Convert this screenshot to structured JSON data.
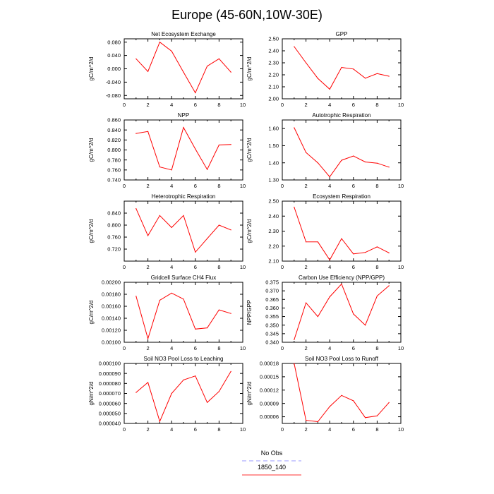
{
  "figure": {
    "title": "Europe (45-60N,10W-30E)",
    "legend": [
      {
        "label": "No Obs",
        "color": "#9999ff",
        "dash": true
      },
      {
        "label": "1850_140",
        "color": "#ff3333",
        "dash": false
      }
    ]
  },
  "chart_data": [
    {
      "type": "line",
      "title": "Net Ecosystem Exchange",
      "ylabel": "gC/m^2/d",
      "xlim": [
        0,
        10
      ],
      "xticks": [
        0,
        2,
        4,
        6,
        8,
        10
      ],
      "ylim": [
        -0.09,
        0.09
      ],
      "yticks": [
        -0.08,
        -0.04,
        0.0,
        0.04,
        0.08
      ],
      "ytick_labels": [
        "-0.080",
        "-0.040",
        "0.000",
        "0.040",
        "0.080"
      ],
      "series": [
        {
          "name": "1850_140",
          "color": "#ff0000",
          "x": [
            1,
            2,
            3,
            4,
            5,
            6,
            7,
            8,
            9
          ],
          "y": [
            0.03,
            -0.008,
            0.08,
            0.053,
            -0.01,
            -0.072,
            0.008,
            0.03,
            -0.01
          ]
        }
      ]
    },
    {
      "type": "line",
      "title": "GPP",
      "ylabel": "gC/m^2/d",
      "xlim": [
        0,
        10
      ],
      "xticks": [
        0,
        2,
        4,
        6,
        8,
        10
      ],
      "ylim": [
        2.0,
        2.5
      ],
      "yticks": [
        2.0,
        2.1,
        2.2,
        2.3,
        2.4,
        2.5
      ],
      "ytick_labels": [
        "2.00",
        "2.10",
        "2.20",
        "2.30",
        "2.40",
        "2.50"
      ],
      "series": [
        {
          "name": "1850_140",
          "color": "#ff0000",
          "x": [
            1,
            2,
            3,
            4,
            5,
            6,
            7,
            8,
            9
          ],
          "y": [
            2.435,
            2.3,
            2.17,
            2.08,
            2.262,
            2.248,
            2.172,
            2.21,
            2.188
          ]
        }
      ]
    },
    {
      "type": "line",
      "title": "NPP",
      "ylabel": "gC/m^2/d",
      "xlim": [
        0,
        10
      ],
      "xticks": [
        0,
        2,
        4,
        6,
        8,
        10
      ],
      "ylim": [
        0.74,
        0.86
      ],
      "yticks": [
        0.74,
        0.76,
        0.78,
        0.8,
        0.82,
        0.84,
        0.86
      ],
      "ytick_labels": [
        "0.740",
        "0.760",
        "0.780",
        "0.800",
        "0.820",
        "0.840",
        "0.860"
      ],
      "series": [
        {
          "name": "1850_140",
          "color": "#ff0000",
          "x": [
            1,
            2,
            3,
            4,
            5,
            6,
            7,
            8,
            9
          ],
          "y": [
            0.833,
            0.837,
            0.766,
            0.76,
            0.845,
            0.802,
            0.761,
            0.81,
            0.811
          ]
        }
      ]
    },
    {
      "type": "line",
      "title": "Autotrophic Respiration",
      "ylabel": "gC/m^2/d",
      "xlim": [
        0,
        10
      ],
      "xticks": [
        0,
        2,
        4,
        6,
        8,
        10
      ],
      "ylim": [
        1.3,
        1.65
      ],
      "yticks": [
        1.3,
        1.4,
        1.5,
        1.6
      ],
      "ytick_labels": [
        "1.30",
        "1.40",
        "1.50",
        "1.60"
      ],
      "series": [
        {
          "name": "1850_140",
          "color": "#ff0000",
          "x": [
            1,
            2,
            3,
            4,
            5,
            6,
            7,
            8,
            9
          ],
          "y": [
            1.605,
            1.46,
            1.4,
            1.318,
            1.415,
            1.44,
            1.405,
            1.398,
            1.375
          ]
        }
      ]
    },
    {
      "type": "line",
      "title": "Heterotrophic Respiration",
      "ylabel": "gC/m^2/d",
      "xlim": [
        0,
        10
      ],
      "xticks": [
        0,
        2,
        4,
        6,
        8,
        10
      ],
      "ylim": [
        0.68,
        0.88
      ],
      "yticks": [
        0.72,
        0.76,
        0.8,
        0.84
      ],
      "ytick_labels": [
        "0.720",
        "0.760",
        "0.800",
        "0.840"
      ],
      "series": [
        {
          "name": "1850_140",
          "color": "#ff0000",
          "x": [
            1,
            2,
            3,
            4,
            5,
            6,
            7,
            8,
            9
          ],
          "y": [
            0.855,
            0.765,
            0.832,
            0.792,
            0.832,
            0.71,
            0.755,
            0.8,
            0.784
          ]
        }
      ]
    },
    {
      "type": "line",
      "title": "Ecosystem Respiration",
      "ylabel": "gC/m^2/d",
      "xlim": [
        0,
        10
      ],
      "xticks": [
        0,
        2,
        4,
        6,
        8,
        10
      ],
      "ylim": [
        2.1,
        2.5
      ],
      "yticks": [
        2.1,
        2.2,
        2.3,
        2.4,
        2.5
      ],
      "ytick_labels": [
        "2.10",
        "2.20",
        "2.30",
        "2.40",
        "2.50"
      ],
      "series": [
        {
          "name": "1850_140",
          "color": "#ff0000",
          "x": [
            1,
            2,
            3,
            4,
            5,
            6,
            7,
            8,
            9
          ],
          "y": [
            2.46,
            2.228,
            2.228,
            2.108,
            2.25,
            2.148,
            2.158,
            2.195,
            2.155
          ]
        }
      ]
    },
    {
      "type": "line",
      "title": "Gridcell Surface CH4 Flux",
      "ylabel": "gC/m^2/d",
      "xlim": [
        0,
        10
      ],
      "xticks": [
        0,
        2,
        4,
        6,
        8,
        10
      ],
      "ylim": [
        0.001,
        0.002
      ],
      "yticks": [
        0.001,
        0.0012,
        0.0014,
        0.0016,
        0.0018,
        0.002
      ],
      "ytick_labels": [
        "0.00100",
        "0.00120",
        "0.00140",
        "0.00160",
        "0.00180",
        "0.00200"
      ],
      "series": [
        {
          "name": "1850_140",
          "color": "#ff0000",
          "x": [
            1,
            2,
            3,
            4,
            5,
            6,
            7,
            8,
            9
          ],
          "y": [
            0.00177,
            0.00106,
            0.0017,
            0.00182,
            0.00172,
            0.00122,
            0.00124,
            0.00154,
            0.00148
          ]
        }
      ]
    },
    {
      "type": "line",
      "title": "Carbon Use Efficiency (NPP/GPP)",
      "ylabel": "NPP/GPP",
      "xlim": [
        0,
        10
      ],
      "xticks": [
        0,
        2,
        4,
        6,
        8,
        10
      ],
      "ylim": [
        0.34,
        0.375
      ],
      "yticks": [
        0.34,
        0.345,
        0.35,
        0.355,
        0.36,
        0.365,
        0.37,
        0.375
      ],
      "ytick_labels": [
        "0.340",
        "0.345",
        "0.350",
        "0.355",
        "0.360",
        "0.365",
        "0.370",
        "0.375"
      ],
      "series": [
        {
          "name": "1850_140",
          "color": "#ff0000",
          "x": [
            1,
            2,
            3,
            4,
            5,
            6,
            7,
            8,
            9
          ],
          "y": [
            0.3415,
            0.363,
            0.355,
            0.3665,
            0.374,
            0.3565,
            0.35,
            0.367,
            0.373
          ]
        }
      ]
    },
    {
      "type": "line",
      "title": "Soil NO3 Pool Loss to Leaching",
      "ylabel": "gN/m^2/d",
      "xlim": [
        0,
        10
      ],
      "xticks": [
        0,
        2,
        4,
        6,
        8,
        10
      ],
      "ylim": [
        4e-05,
        0.0001
      ],
      "yticks": [
        4e-05,
        5e-05,
        6e-05,
        7e-05,
        8e-05,
        9e-05,
        0.0001
      ],
      "ytick_labels": [
        "0.000040",
        "0.000050",
        "0.000060",
        "0.000070",
        "0.000080",
        "0.000090",
        "0.000100"
      ],
      "series": [
        {
          "name": "1850_140",
          "color": "#ff0000",
          "x": [
            1,
            2,
            3,
            4,
            5,
            6,
            7,
            8,
            9
          ],
          "y": [
            7.1e-05,
            8.1e-05,
            4.2e-05,
            7e-05,
            8.35e-05,
            8.75e-05,
            6.1e-05,
            7.2e-05,
            9.2e-05
          ]
        }
      ]
    },
    {
      "type": "line",
      "title": "Soil NO3 Pool Loss to Runoff",
      "ylabel": "gN/m^2/d",
      "xlim": [
        0,
        10
      ],
      "xticks": [
        0,
        2,
        4,
        6,
        8,
        10
      ],
      "ylim": [
        4.5e-05,
        0.00018
      ],
      "yticks": [
        6e-05,
        9e-05,
        0.00012,
        0.00015,
        0.00018
      ],
      "ytick_labels": [
        "0.00006",
        "0.00009",
        "0.00012",
        "0.00015",
        "0.00018"
      ],
      "series": [
        {
          "name": "1850_140",
          "color": "#ff0000",
          "x": [
            1,
            2,
            3,
            4,
            5,
            6,
            7,
            8,
            9
          ],
          "y": [
            0.00018,
            5.2e-05,
            4.9e-05,
            8.3e-05,
            0.000108,
            9.6e-05,
            5.8e-05,
            6.2e-05,
            9.2e-05
          ]
        }
      ]
    }
  ]
}
